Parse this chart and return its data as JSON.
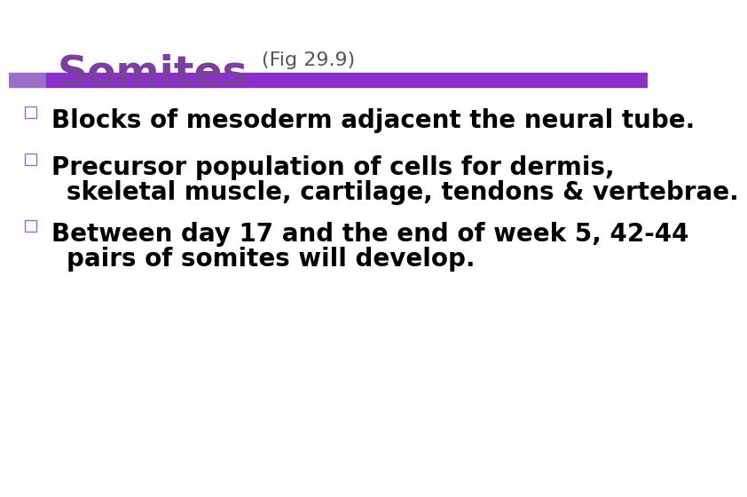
{
  "title": "Somites",
  "title_color": "#7B3FA0",
  "subtitle": "(Fig 29.9)",
  "subtitle_color": "#555555",
  "background_color": "#FFFFFF",
  "bar_color": "#8B2FC9",
  "bar_left_color": "#9B6EC8",
  "bullet_square_color": "#9B6EC8",
  "bullet_text_color": "#000000",
  "bullets": [
    {
      "line1": "Blocks of mesoderm adjacent the neural tube.",
      "line2": null
    },
    {
      "line1": "Precursor population of cells for dermis,",
      "line2": "skeletal muscle, cartilage, tendons & vertebrae."
    },
    {
      "line1": "Between day 17 and the end of week 5, 42-44",
      "line2": "pairs of somites will develop."
    }
  ],
  "title_fontsize": 34,
  "subtitle_fontsize": 16,
  "bullet_fontsize": 20
}
